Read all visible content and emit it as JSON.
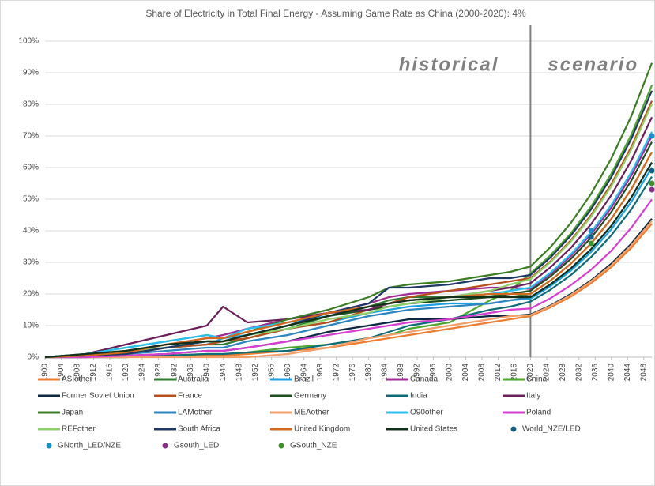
{
  "chart_data": {
    "type": "line",
    "title": "Share of Electricity in Total Final Energy - Assuming Same Rate as China (2000-2020): 4%",
    "x": [
      1900,
      1910,
      1920,
      1930,
      1940,
      1944,
      1950,
      1960,
      1970,
      1980,
      1985,
      1990,
      2000,
      2010,
      2015,
      2020,
      2025,
      2030,
      2035,
      2040,
      2045,
      2050
    ],
    "xlim": [
      1900,
      2050
    ],
    "xticks": [
      1900,
      1904,
      1908,
      1912,
      1916,
      1920,
      1924,
      1928,
      1932,
      1936,
      1940,
      1944,
      1948,
      1952,
      1956,
      1960,
      1964,
      1968,
      1972,
      1976,
      1980,
      1984,
      1988,
      1992,
      1996,
      2000,
      2004,
      2008,
      2012,
      2016,
      2020,
      2024,
      2028,
      2032,
      2036,
      2040,
      2044,
      2048
    ],
    "ylim": [
      0,
      100
    ],
    "yticks": [
      {
        "value": 0,
        "label": "0%"
      },
      {
        "value": 10,
        "label": "10%"
      },
      {
        "value": 20,
        "label": "20%"
      },
      {
        "value": 30,
        "label": "30%"
      },
      {
        "value": 40,
        "label": "40%"
      },
      {
        "value": 50,
        "label": "50%"
      },
      {
        "value": 60,
        "label": "60%"
      },
      {
        "value": 70,
        "label": "70%"
      },
      {
        "value": 80,
        "label": "80%"
      },
      {
        "value": 90,
        "label": "90%"
      },
      {
        "value": 100,
        "label": "100%"
      }
    ],
    "grid": true,
    "divider": 2020,
    "annotations": [
      "historical",
      "scenario"
    ],
    "series": [
      {
        "name": "ASIother",
        "color": "#ed7d31",
        "values": [
          0,
          0,
          0,
          0.3,
          0.5,
          0.5,
          1,
          2,
          3,
          5,
          6,
          7,
          9,
          11,
          12,
          13,
          15.8,
          19.2,
          23.4,
          28.5,
          34.7,
          42.2
        ]
      },
      {
        "name": "Australia",
        "color": "#2e7d32",
        "values": [
          0,
          0.5,
          1.5,
          3,
          4,
          4,
          6,
          9,
          13,
          16,
          18,
          19,
          19,
          20,
          19,
          20,
          24.3,
          29.6,
          36,
          43.8,
          53.3,
          64.9
        ]
      },
      {
        "name": "Brazil",
        "color": "#1ba1e2",
        "values": [
          0,
          0.5,
          2,
          3,
          4,
          6,
          7,
          9,
          11,
          14,
          15,
          16,
          17,
          17,
          18,
          18.5,
          22.5,
          27.4,
          33.3,
          40.5,
          49.3,
          60
        ]
      },
      {
        "name": "Canada",
        "color": "#a02b93",
        "values": [
          0,
          0.5,
          2,
          4,
          6,
          7,
          9,
          12,
          14,
          17,
          19,
          20,
          21,
          22,
          22,
          21.6,
          26.3,
          32,
          38.9,
          47.3,
          57.6,
          70
        ]
      },
      {
        "name": "China",
        "color": "#4ea72e",
        "values": [
          0,
          0,
          0,
          0.5,
          1,
          1,
          1.5,
          3,
          4,
          6,
          7,
          9,
          11,
          18,
          21,
          26.5,
          32.3,
          39.2,
          47.7,
          58.1,
          70.6,
          86
        ]
      },
      {
        "name": "Former Soviet Union",
        "color": "#0e2841",
        "values": [
          0,
          0,
          0.5,
          1,
          2,
          2,
          3,
          5,
          8,
          10,
          11,
          12,
          12,
          13,
          13,
          13.5,
          16.4,
          20,
          24.3,
          29.6,
          36,
          43.8
        ]
      },
      {
        "name": "France",
        "color": "#b9501c",
        "values": [
          0,
          0.5,
          1,
          3,
          4,
          5,
          6,
          9,
          11,
          15,
          17,
          19,
          21,
          23,
          24,
          25,
          30.4,
          37,
          45,
          54.8,
          66.7,
          81.1
        ]
      },
      {
        "name": "Germany",
        "color": "#1e4d1e",
        "values": [
          0,
          0.5,
          1,
          3,
          5,
          5,
          7,
          10,
          13,
          15,
          16,
          17,
          18,
          19,
          20,
          21,
          25.6,
          31.1,
          37.8,
          46,
          56,
          68.1
        ]
      },
      {
        "name": "India",
        "color": "#0f6b78",
        "values": [
          0,
          0,
          0,
          0.5,
          1,
          1,
          1.5,
          2,
          4,
          6,
          8,
          10,
          12,
          15,
          16,
          17.6,
          21.4,
          26,
          31.7,
          38.6,
          46.9,
          57.1
        ]
      },
      {
        "name": "Italy",
        "color": "#6b1f5a",
        "values": [
          0,
          1,
          4,
          7,
          10,
          16,
          11,
          12,
          14,
          15,
          17,
          18,
          19,
          21,
          22,
          23.4,
          28.5,
          34.6,
          42.1,
          51.3,
          62.4,
          75.9
        ]
      },
      {
        "name": "Japan",
        "color": "#3b7d23",
        "values": [
          0,
          1,
          3,
          5,
          7,
          6,
          8,
          12,
          15,
          19,
          22,
          23,
          24,
          26,
          27,
          28.7,
          34.9,
          42.5,
          51.7,
          62.9,
          76.5,
          93.1
        ]
      },
      {
        "name": "LAMother",
        "color": "#2e86c1",
        "values": [
          0,
          0,
          1,
          2,
          3,
          3,
          5,
          7,
          10,
          13,
          14,
          15,
          16,
          17,
          18,
          19,
          23.1,
          28.1,
          34.2,
          41.6,
          50.7,
          61.6
        ]
      },
      {
        "name": "MEAother",
        "color": "#f2a06a",
        "values": [
          0,
          0,
          0,
          0,
          0,
          0,
          0,
          1,
          3,
          6,
          7,
          8,
          10,
          12,
          13,
          13.3,
          16.2,
          19.7,
          24,
          29.1,
          35.5,
          43.1
        ]
      },
      {
        "name": "O90other",
        "color": "#29c0ef",
        "values": [
          0,
          1,
          3,
          5,
          7,
          6,
          9,
          11,
          13,
          16,
          17,
          18,
          19,
          20,
          21,
          22,
          26.8,
          32.6,
          39.6,
          48.2,
          58.7,
          71.3
        ]
      },
      {
        "name": "Poland",
        "color": "#d63fd0",
        "values": [
          0,
          0,
          0.5,
          1,
          2,
          2,
          3,
          5,
          7,
          9,
          10,
          11,
          12,
          14,
          15,
          15.4,
          18.7,
          22.8,
          27.7,
          33.7,
          41.1,
          49.9
        ]
      },
      {
        "name": "REFother",
        "color": "#8ed16b",
        "values": [
          0,
          0.5,
          1.5,
          3,
          5,
          5,
          7,
          9,
          12,
          14,
          16,
          17,
          19,
          21,
          23,
          24.7,
          30.1,
          36.6,
          44.5,
          54.1,
          65.9,
          80.1
        ]
      },
      {
        "name": "South Africa",
        "color": "#1f3864",
        "values": [
          0,
          0.5,
          1,
          3,
          5,
          5,
          7,
          10,
          14,
          17,
          22,
          22,
          23,
          25,
          25,
          26,
          31.6,
          38.5,
          46.8,
          57,
          69.3,
          84.3
        ]
      },
      {
        "name": "United Kingdom",
        "color": "#d2691e",
        "values": [
          0,
          0.5,
          1.5,
          4,
          6,
          6,
          8,
          11,
          14,
          16,
          17,
          18,
          19,
          20,
          20,
          20,
          24.3,
          29.6,
          36,
          43.8,
          53.3,
          64.9
        ]
      },
      {
        "name": "United States",
        "color": "#13301a",
        "values": [
          0,
          1,
          2,
          4,
          5,
          5,
          7,
          10,
          13,
          16,
          17,
          18,
          19,
          19,
          19,
          19,
          23.1,
          28.1,
          34.2,
          41.6,
          50.7,
          61.6
        ]
      },
      {
        "name": "World_NZE/LED",
        "type": "scatter",
        "color": "#156082",
        "x": [
          2035,
          2050
        ],
        "values": [
          38,
          59
        ]
      },
      {
        "name": "GNorth_LED/NZE",
        "type": "scatter",
        "color": "#1a8fc9",
        "x": [
          2035,
          2050
        ],
        "values": [
          40,
          70
        ]
      },
      {
        "name": "Gsouth_LED",
        "type": "scatter",
        "color": "#8a2a8a",
        "x": [
          2050
        ],
        "values": [
          53
        ]
      },
      {
        "name": "GSouth_NZE",
        "type": "scatter",
        "color": "#3f8f2a",
        "x": [
          2035,
          2050
        ],
        "values": [
          36,
          55
        ]
      }
    ]
  }
}
